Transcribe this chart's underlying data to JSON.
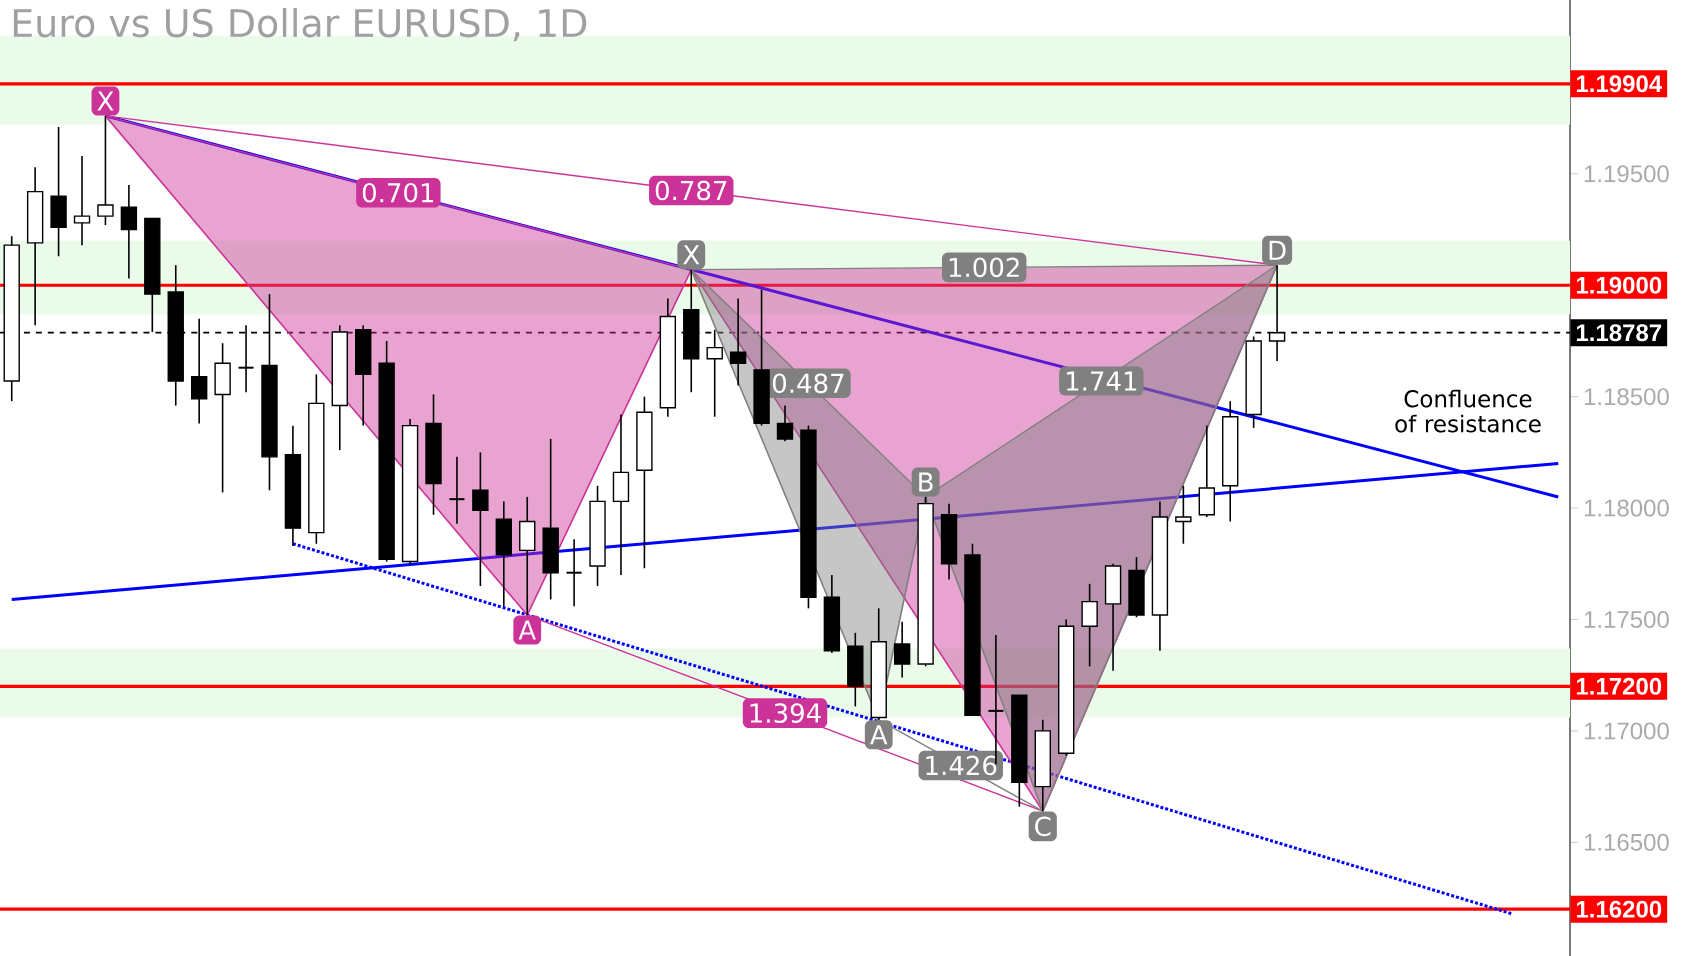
{
  "chart_data": {
    "type": "candlestick",
    "title": "Euro vs US Dollar EURUSD, 1D",
    "categories": [
      null,
      null,
      null,
      null,
      null,
      null,
      null,
      null,
      null,
      null,
      null,
      null,
      null,
      null,
      null,
      null,
      null,
      null,
      null,
      null,
      null,
      null,
      null,
      null,
      null,
      null,
      null,
      null,
      null,
      null,
      null,
      null,
      null,
      null,
      null,
      null,
      null,
      null,
      null,
      null,
      null,
      null,
      null,
      null,
      null,
      null,
      null,
      null,
      null,
      null,
      null,
      null,
      null,
      null,
      null,
      null,
      null,
      null,
      null,
      null,
      null,
      null,
      null,
      null,
      null,
      null,
      null
    ],
    "ohlc": [
      [
        1.1857,
        1.1922,
        1.1848,
        1.1918
      ],
      [
        1.1919,
        1.1953,
        1.1882,
        1.1942
      ],
      [
        1.194,
        1.1971,
        1.1913,
        1.1926
      ],
      [
        1.1928,
        1.1958,
        1.1918,
        1.1931
      ],
      [
        1.1931,
        1.1976,
        1.1927,
        1.1936
      ],
      [
        1.1935,
        1.1945,
        1.1903,
        1.1925
      ],
      [
        1.193,
        1.193,
        1.1879,
        1.1896
      ],
      [
        1.1897,
        1.1909,
        1.1846,
        1.1857
      ],
      [
        1.1859,
        1.1885,
        1.1838,
        1.1849
      ],
      [
        1.1851,
        1.1874,
        1.1807,
        1.1865
      ],
      [
        1.1863,
        1.1882,
        1.1852,
        1.1863
      ],
      [
        1.1864,
        1.1896,
        1.1808,
        1.1823
      ],
      [
        1.1824,
        1.1837,
        1.1783,
        1.1791
      ],
      [
        1.1789,
        1.186,
        1.1784,
        1.1847
      ],
      [
        1.1846,
        1.1882,
        1.1826,
        1.1879
      ],
      [
        1.188,
        1.1882,
        1.1837,
        1.186
      ],
      [
        1.1865,
        1.1875,
        1.1776,
        1.1777
      ],
      [
        1.1776,
        1.184,
        1.1775,
        1.1837
      ],
      [
        1.1838,
        1.1851,
        1.1797,
        1.1811
      ],
      [
        1.1804,
        1.1823,
        1.1793,
        1.1804
      ],
      [
        1.1808,
        1.1825,
        1.1765,
        1.1799
      ],
      [
        1.1795,
        1.1803,
        1.1756,
        1.1779
      ],
      [
        1.1781,
        1.1805,
        1.1752,
        1.1794
      ],
      [
        1.1791,
        1.1831,
        1.1759,
        1.1771
      ],
      [
        1.1771,
        1.1786,
        1.1756,
        1.1771
      ],
      [
        1.1774,
        1.181,
        1.1765,
        1.1803
      ],
      [
        1.1803,
        1.1842,
        1.177,
        1.1816
      ],
      [
        1.1817,
        1.185,
        1.1773,
        1.1843
      ],
      [
        1.1845,
        1.1894,
        1.1841,
        1.1886
      ],
      [
        1.1889,
        1.1907,
        1.1852,
        1.1867
      ],
      [
        1.1867,
        1.188,
        1.1841,
        1.1872
      ],
      [
        1.187,
        1.1894,
        1.1855,
        1.1865
      ],
      [
        1.1862,
        1.1898,
        1.1837,
        1.1838
      ],
      [
        1.1838,
        1.1846,
        1.183,
        1.1831
      ],
      [
        1.1835,
        1.1837,
        1.1755,
        1.176
      ],
      [
        1.176,
        1.177,
        1.1735,
        1.1736
      ],
      [
        1.1738,
        1.1744,
        1.1711,
        1.172
      ],
      [
        1.1706,
        1.1755,
        1.1705,
        1.174
      ],
      [
        1.1739,
        1.1749,
        1.1724,
        1.173
      ],
      [
        1.173,
        1.1805,
        1.1729,
        1.1802
      ],
      [
        1.1797,
        1.1802,
        1.1768,
        1.1775
      ],
      [
        1.1779,
        1.1784,
        1.1707,
        1.1707
      ],
      [
        1.1709,
        1.1743,
        1.1685,
        1.1709
      ],
      [
        1.1716,
        1.1716,
        1.1666,
        1.1677
      ],
      [
        1.1675,
        1.1705,
        1.1664,
        1.17
      ],
      [
        1.169,
        1.175,
        1.1689,
        1.1747
      ],
      [
        1.1747,
        1.1766,
        1.1729,
        1.1758
      ],
      [
        1.1757,
        1.1775,
        1.1727,
        1.1774
      ],
      [
        1.1772,
        1.1778,
        1.1751,
        1.1752
      ],
      [
        1.1752,
        1.1803,
        1.1736,
        1.1796
      ],
      [
        1.1794,
        1.181,
        1.1784,
        1.1796
      ],
      [
        1.1797,
        1.1837,
        1.1796,
        1.1809
      ],
      [
        1.181,
        1.1848,
        1.1794,
        1.1841
      ],
      [
        1.1842,
        1.1877,
        1.1836,
        1.1875
      ],
      [
        1.1875,
        1.1909,
        1.1866,
        1.18787
      ],
      null,
      null,
      null,
      null,
      null,
      null,
      null,
      null,
      null,
      null,
      null,
      null
    ],
    "series": [
      {
        "type": "line",
        "color": "#0000ff",
        "values": [
          1.1759,
          null,
          null,
          null,
          null,
          null,
          null,
          null,
          null,
          null,
          null,
          null,
          null,
          null,
          null,
          null,
          null,
          null,
          null,
          null,
          null,
          null,
          null,
          null,
          null,
          null,
          null,
          null,
          null,
          null,
          null,
          null,
          null,
          null,
          null,
          null,
          null,
          null,
          null,
          null,
          null,
          null,
          null,
          null,
          null,
          null,
          null,
          null,
          null,
          null,
          null,
          null,
          null,
          null,
          null,
          null,
          null,
          null,
          null,
          null,
          null,
          null,
          null,
          null,
          null,
          null,
          1.182
        ]
      },
      {
        "type": "line",
        "color": "#0000ff",
        "values": [
          null,
          null,
          null,
          null,
          1.1976,
          null,
          null,
          null,
          null,
          null,
          null,
          null,
          null,
          null,
          null,
          null,
          null,
          null,
          null,
          null,
          null,
          null,
          null,
          null,
          null,
          null,
          null,
          null,
          null,
          null,
          null,
          null,
          null,
          null,
          null,
          null,
          null,
          null,
          null,
          null,
          null,
          null,
          null,
          null,
          null,
          null,
          null,
          null,
          null,
          null,
          null,
          null,
          null,
          null,
          null,
          null,
          null,
          null,
          null,
          null,
          null,
          null,
          null,
          null,
          null,
          null,
          1.1805
        ]
      },
      {
        "type": "line",
        "color": "#0000ff",
        "line_style": "dotted",
        "values": [
          null,
          null,
          null,
          null,
          null,
          null,
          null,
          null,
          null,
          null,
          null,
          null,
          1.1784,
          null,
          null,
          null,
          null,
          null,
          null,
          null,
          null,
          null,
          null,
          null,
          null,
          null,
          null,
          null,
          null,
          null,
          null,
          null,
          null,
          null,
          null,
          null,
          null,
          null,
          null,
          null,
          null,
          null,
          null,
          null,
          null,
          null,
          null,
          null,
          null,
          null,
          null,
          null,
          null,
          null,
          null,
          null,
          null,
          null,
          null,
          null,
          null,
          null,
          null,
          null,
          1.1618,
          null,
          null
        ]
      },
      {
        "type": "line",
        "color": "#cc3399",
        "values": [
          null,
          null,
          null,
          null,
          1.1976,
          null,
          null,
          null,
          null,
          null,
          null,
          null,
          null,
          null,
          null,
          null,
          null,
          null,
          null,
          null,
          null,
          null,
          1.1752,
          null,
          null,
          null,
          null,
          null,
          null,
          1.1907,
          null,
          null,
          null,
          null,
          null,
          null,
          null,
          null,
          null,
          null,
          null,
          null,
          null,
          null,
          1.1664,
          null,
          null,
          null,
          null,
          null,
          null,
          null,
          null,
          null,
          1.1909,
          null,
          null,
          null,
          null,
          null,
          null,
          null,
          null,
          null,
          null,
          null,
          null
        ],
        "value_labels": [
          null,
          null,
          null,
          null,
          "X",
          null,
          null,
          null,
          null,
          null,
          null,
          null,
          null,
          null,
          null,
          null,
          null,
          null,
          null,
          null,
          null,
          null,
          "A",
          null,
          null,
          null,
          null,
          null,
          null,
          null,
          null,
          null,
          null,
          null,
          null,
          null,
          null,
          null,
          null,
          null,
          null,
          null,
          null,
          null,
          null,
          null,
          null,
          null,
          null,
          null,
          null,
          null,
          null,
          null,
          null,
          null,
          null,
          null,
          null,
          null,
          null,
          null,
          null,
          null,
          null,
          null,
          null
        ]
      },
      {
        "type": "line",
        "color": "#cc3399",
        "name": "0.701",
        "values": [
          null,
          null,
          null,
          null,
          1.1976,
          null,
          null,
          null,
          null,
          null,
          null,
          null,
          null,
          null,
          null,
          null,
          null,
          null,
          null,
          null,
          null,
          null,
          null,
          null,
          null,
          null,
          null,
          null,
          null,
          1.1907,
          null,
          null,
          null,
          null,
          null,
          null,
          null,
          null,
          null,
          null,
          null,
          null,
          null,
          null,
          null,
          null,
          null,
          null,
          null,
          null,
          null,
          null,
          null,
          null,
          null,
          null,
          null,
          null,
          null,
          null,
          null,
          null,
          null,
          null,
          null,
          null,
          null
        ]
      },
      {
        "type": "line",
        "color": "#cc3399",
        "name": "0.787",
        "values": [
          null,
          null,
          null,
          null,
          1.1976,
          null,
          null,
          null,
          null,
          null,
          null,
          null,
          null,
          null,
          null,
          null,
          null,
          null,
          null,
          null,
          null,
          null,
          null,
          null,
          null,
          null,
          null,
          null,
          null,
          null,
          null,
          null,
          null,
          null,
          null,
          null,
          null,
          null,
          null,
          null,
          null,
          null,
          null,
          null,
          null,
          null,
          null,
          null,
          null,
          null,
          null,
          null,
          null,
          null,
          1.1909,
          null,
          null,
          null,
          null,
          null,
          null,
          null,
          null,
          null,
          null,
          null,
          null
        ]
      },
      {
        "type": "line",
        "color": "#cc3399",
        "name": "1.394",
        "values": [
          null,
          null,
          null,
          null,
          null,
          null,
          null,
          null,
          null,
          null,
          null,
          null,
          null,
          null,
          null,
          null,
          null,
          null,
          null,
          null,
          null,
          null,
          1.1752,
          null,
          null,
          null,
          null,
          null,
          null,
          null,
          null,
          null,
          null,
          null,
          null,
          null,
          null,
          null,
          null,
          null,
          null,
          null,
          null,
          null,
          1.1664,
          null,
          null,
          null,
          null,
          null,
          null,
          null,
          null,
          null,
          null,
          null,
          null,
          null,
          null,
          null,
          null,
          null,
          null,
          null,
          null,
          null,
          null
        ]
      },
      {
        "type": "line",
        "color": "#808080",
        "values": [
          null,
          null,
          null,
          null,
          null,
          null,
          null,
          null,
          null,
          null,
          null,
          null,
          null,
          null,
          null,
          null,
          null,
          null,
          null,
          null,
          null,
          null,
          null,
          null,
          null,
          null,
          null,
          null,
          null,
          1.1907,
          null,
          null,
          null,
          null,
          null,
          null,
          null,
          1.1705,
          null,
          1.1805,
          null,
          null,
          null,
          null,
          1.1664,
          null,
          null,
          null,
          null,
          null,
          null,
          null,
          null,
          null,
          1.1909,
          null,
          null,
          null,
          null,
          null,
          null,
          null,
          null,
          null,
          null,
          null,
          null
        ],
        "value_labels": [
          null,
          null,
          null,
          null,
          null,
          null,
          null,
          null,
          null,
          null,
          null,
          null,
          null,
          null,
          null,
          null,
          null,
          null,
          null,
          null,
          null,
          null,
          null,
          null,
          null,
          null,
          null,
          null,
          null,
          "X",
          null,
          null,
          null,
          null,
          null,
          null,
          null,
          "A",
          null,
          "B",
          null,
          null,
          null,
          null,
          "C",
          null,
          null,
          null,
          null,
          null,
          null,
          null,
          null,
          null,
          "D",
          null,
          null,
          null,
          null,
          null,
          null,
          null,
          null,
          null,
          null,
          null,
          null
        ]
      },
      {
        "type": "line",
        "color": "#808080",
        "name": "0.487",
        "values": [
          null,
          null,
          null,
          null,
          null,
          null,
          null,
          null,
          null,
          null,
          null,
          null,
          null,
          null,
          null,
          null,
          null,
          null,
          null,
          null,
          null,
          null,
          null,
          null,
          null,
          null,
          null,
          null,
          null,
          1.1907,
          null,
          null,
          null,
          null,
          null,
          null,
          null,
          null,
          null,
          1.1805,
          null,
          null,
          null,
          null,
          null,
          null,
          null,
          null,
          null,
          null,
          null,
          null,
          null,
          null,
          null,
          null,
          null,
          null,
          null,
          null,
          null,
          null,
          null,
          null,
          null,
          null,
          null
        ]
      },
      {
        "type": "line",
        "color": "#808080",
        "name": "1.002",
        "values": [
          null,
          null,
          null,
          null,
          null,
          null,
          null,
          null,
          null,
          null,
          null,
          null,
          null,
          null,
          null,
          null,
          null,
          null,
          null,
          null,
          null,
          null,
          null,
          null,
          null,
          null,
          null,
          null,
          null,
          1.1907,
          null,
          null,
          null,
          null,
          null,
          null,
          null,
          null,
          null,
          null,
          null,
          null,
          null,
          null,
          null,
          null,
          null,
          null,
          null,
          null,
          null,
          null,
          null,
          null,
          1.1909,
          null,
          null,
          null,
          null,
          null,
          null,
          null,
          null,
          null,
          null,
          null,
          null
        ]
      },
      {
        "type": "line",
        "color": "#808080",
        "name": "1.741",
        "values": [
          null,
          null,
          null,
          null,
          null,
          null,
          null,
          null,
          null,
          null,
          null,
          null,
          null,
          null,
          null,
          null,
          null,
          null,
          null,
          null,
          null,
          null,
          null,
          null,
          null,
          null,
          null,
          null,
          null,
          null,
          null,
          null,
          null,
          null,
          null,
          null,
          null,
          null,
          null,
          1.1805,
          null,
          null,
          null,
          null,
          null,
          null,
          null,
          null,
          null,
          null,
          null,
          null,
          null,
          null,
          1.1909,
          null,
          null,
          null,
          null,
          null,
          null,
          null,
          null,
          null,
          null,
          null,
          null
        ]
      },
      {
        "type": "line",
        "color": "#808080",
        "name": "1.426",
        "values": [
          null,
          null,
          null,
          null,
          null,
          null,
          null,
          null,
          null,
          null,
          null,
          null,
          null,
          null,
          null,
          null,
          null,
          null,
          null,
          null,
          null,
          null,
          null,
          null,
          null,
          null,
          null,
          null,
          null,
          null,
          null,
          null,
          null,
          null,
          null,
          null,
          null,
          1.1705,
          null,
          null,
          null,
          null,
          null,
          null,
          1.1664,
          null,
          null,
          null,
          null,
          null,
          null,
          null,
          null,
          null,
          null,
          null,
          null,
          null,
          null,
          null,
          null,
          null,
          null,
          null,
          null,
          null,
          null
        ]
      }
    ],
    "ylim": [
      1.1599,
      1.2028
    ],
    "yticks": [
      {
        "value": 1.165,
        "label": "1.16500"
      },
      {
        "value": 1.17,
        "label": "1.17000"
      },
      {
        "value": 1.175,
        "label": "1.17500"
      },
      {
        "value": 1.18,
        "label": "1.18000"
      },
      {
        "value": 1.185,
        "label": "1.18500"
      },
      {
        "value": 1.195,
        "label": "1.19500"
      }
    ],
    "tick_labels": "y",
    "ref_lines": [
      {
        "axis": "y",
        "value": 1.19904,
        "label": "1.19904",
        "color": "#ff0000"
      },
      {
        "axis": "y",
        "value": 1.19,
        "label": "1.19000",
        "color": "#ff0000"
      },
      {
        "axis": "y",
        "value": 1.172,
        "label": "1.17200",
        "color": "#ff0000"
      },
      {
        "axis": "y",
        "value": 1.162,
        "label": "1.16200",
        "color": "#ff0000"
      },
      {
        "axis": "y",
        "value": 1.18787,
        "label": "1.18787",
        "color": "#000000",
        "line_style": "dashed"
      }
    ],
    "bands": [
      {
        "axis": "y",
        "from": 1.1972,
        "to": 1.2012,
        "color": "#ebfbea"
      },
      {
        "axis": "y",
        "from": 1.1887,
        "to": 1.192,
        "color": "#ebfbea"
      },
      {
        "axis": "y",
        "from": 1.1706,
        "to": 1.1737,
        "color": "#ebfbea"
      }
    ],
    "annotations": [
      "Confluence of resistance"
    ]
  }
}
